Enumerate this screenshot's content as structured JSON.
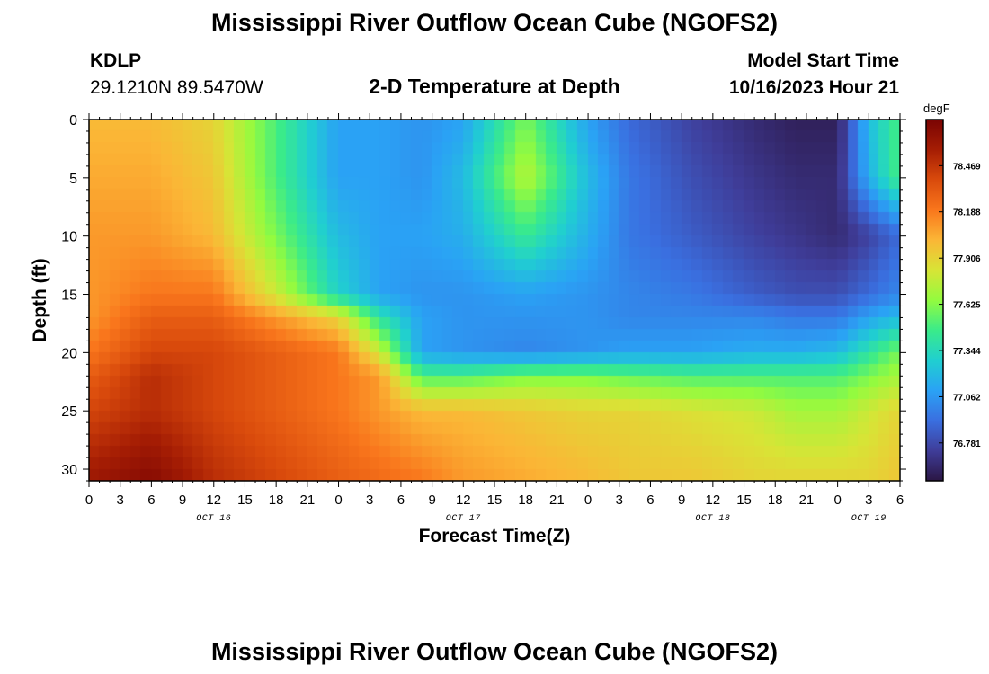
{
  "titles": {
    "top": "Mississippi River Outflow Ocean Cube (NGOFS2)",
    "bottom": "Mississippi River Outflow Ocean Cube (NGOFS2)"
  },
  "station": {
    "id": "KDLP",
    "coords": "29.1210N  89.5470W"
  },
  "model": {
    "label": "Model Start Time",
    "time": "10/16/2023 Hour 21"
  },
  "chart_data": {
    "type": "heatmap",
    "title": "2-D Temperature at Depth",
    "xlabel": "Forecast Time(Z)",
    "ylabel": "Depth (ft)",
    "x_tick_labels": [
      "0",
      "3",
      "6",
      "9",
      "12",
      "15",
      "18",
      "21",
      "0",
      "3",
      "6",
      "9",
      "12",
      "15",
      "18",
      "21",
      "0",
      "3",
      "6",
      "9",
      "12",
      "15",
      "18",
      "21",
      "0",
      "3",
      "6"
    ],
    "day_labels": [
      {
        "label": "OCT 16",
        "hour": 12
      },
      {
        "label": "OCT 17",
        "hour": 36
      },
      {
        "label": "OCT 18",
        "hour": 60
      },
      {
        "label": "OCT 19",
        "hour": 75
      }
    ],
    "xlim_hours": [
      0,
      78
    ],
    "y_ticks": [
      0,
      5,
      10,
      15,
      20,
      25,
      30
    ],
    "ylim": [
      0,
      31
    ],
    "colorbar": {
      "unit": "degF",
      "ticks": [
        76.781,
        77.062,
        77.344,
        77.625,
        77.906,
        78.188,
        78.469
      ],
      "range": [
        76.55,
        78.75
      ],
      "colors": [
        "#2b1644",
        "#3f3d99",
        "#3a6fe0",
        "#2aa2f5",
        "#20cfd0",
        "#3aeb8a",
        "#93fb3f",
        "#d8e436",
        "#fbb636",
        "#f9761c",
        "#d94a0c",
        "#a51d04",
        "#7a0403"
      ]
    },
    "grid": false,
    "time_hours": [
      0,
      6,
      12,
      18,
      24,
      28,
      32,
      36,
      42,
      48,
      52,
      58,
      64,
      68,
      72,
      75,
      78
    ],
    "depth_ft": [
      0,
      5,
      10,
      15,
      17,
      20,
      22,
      25,
      31
    ],
    "temperature_degF": [
      [
        78.0,
        78.0,
        77.9,
        77.5,
        77.1,
        77.1,
        77.05,
        77.1,
        77.6,
        77.1,
        76.9,
        76.75,
        76.65,
        76.6,
        76.6,
        77.2,
        77.5
      ],
      [
        78.05,
        78.05,
        77.95,
        77.5,
        77.1,
        77.1,
        77.05,
        77.2,
        77.75,
        77.2,
        76.95,
        76.8,
        76.7,
        76.65,
        76.65,
        77.15,
        77.5
      ],
      [
        78.1,
        78.1,
        78.0,
        77.6,
        77.2,
        77.1,
        77.1,
        77.15,
        77.45,
        77.15,
        76.95,
        76.85,
        76.75,
        76.7,
        76.65,
        76.75,
        76.9
      ],
      [
        78.1,
        78.2,
        78.2,
        77.8,
        77.3,
        77.1,
        77.05,
        77.05,
        77.1,
        77.05,
        77.0,
        76.95,
        76.85,
        76.8,
        76.8,
        76.9,
        77.0
      ],
      [
        78.1,
        78.3,
        78.3,
        78.1,
        77.9,
        77.4,
        77.1,
        77.05,
        77.05,
        77.05,
        77.0,
        77.0,
        77.0,
        76.95,
        76.95,
        77.1,
        77.2
      ],
      [
        78.2,
        78.4,
        78.4,
        78.3,
        78.2,
        77.8,
        77.1,
        77.05,
        77.0,
        77.05,
        77.1,
        77.1,
        77.15,
        77.15,
        77.2,
        77.4,
        77.6
      ],
      [
        78.3,
        78.5,
        78.4,
        78.3,
        78.2,
        78.1,
        77.5,
        77.5,
        77.6,
        77.6,
        77.55,
        77.5,
        77.5,
        77.5,
        77.5,
        77.6,
        77.7
      ],
      [
        78.4,
        78.5,
        78.4,
        78.3,
        78.2,
        78.1,
        78.0,
        78.0,
        77.95,
        77.9,
        77.9,
        77.85,
        77.8,
        77.7,
        77.7,
        77.8,
        77.9
      ],
      [
        78.6,
        78.7,
        78.5,
        78.4,
        78.3,
        78.25,
        78.2,
        78.1,
        78.05,
        78.0,
        77.95,
        77.95,
        77.9,
        77.9,
        77.9,
        77.9,
        77.95
      ]
    ]
  }
}
